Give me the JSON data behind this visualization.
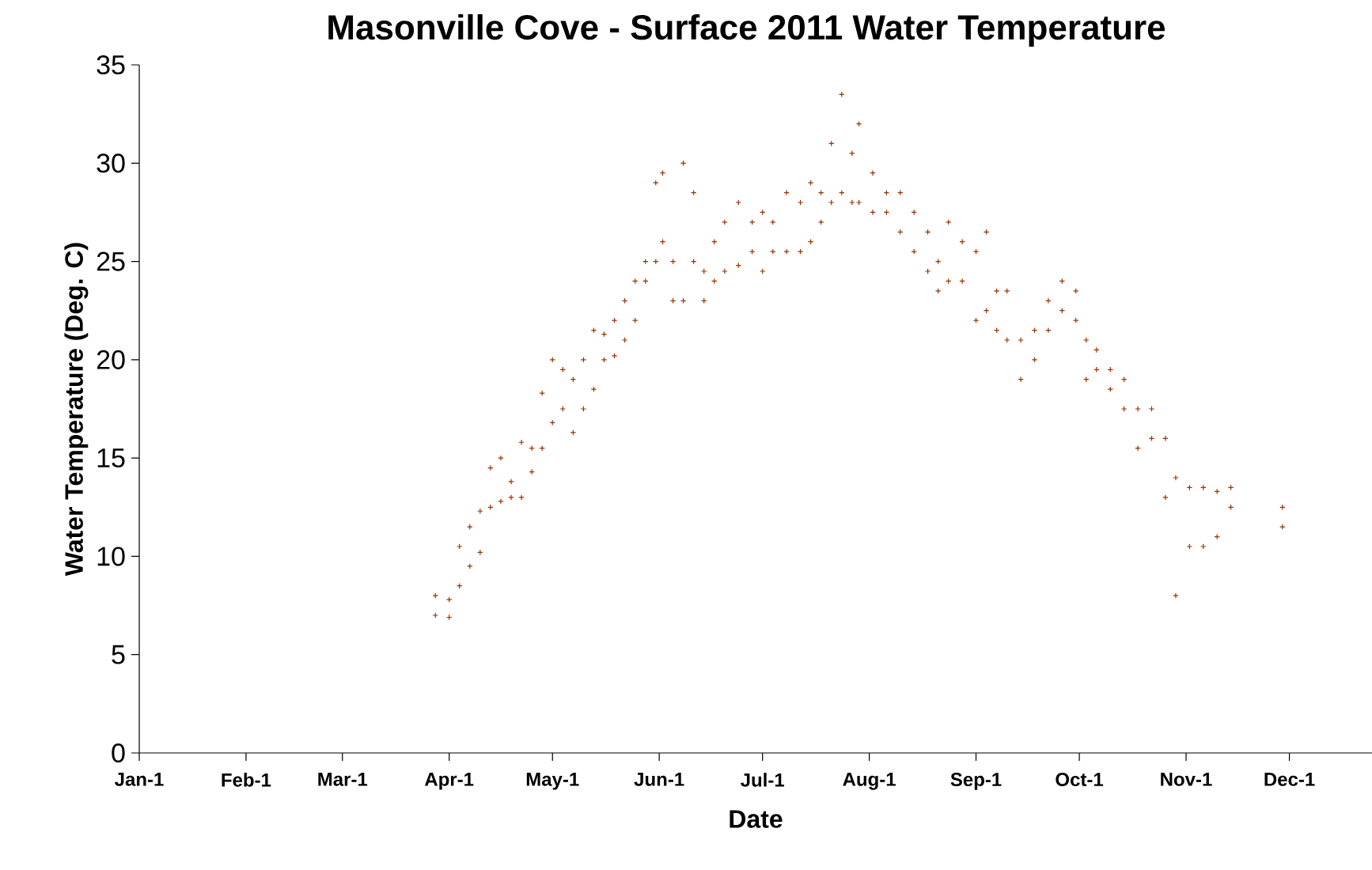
{
  "chart_data": {
    "type": "scatter",
    "title": "Masonville Cove - Surface 2011 Water Temperature",
    "xlabel": "Date",
    "ylabel": "Water Temperature (Deg. C)",
    "xlim": [
      "2011-01-01",
      "2011-12-25"
    ],
    "xticks": [
      {
        "value": "2011-01-01",
        "label": "Jan-1"
      },
      {
        "value": "2011-02-01",
        "label": "Feb-1"
      },
      {
        "value": "2011-03-01",
        "label": "Mar-1"
      },
      {
        "value": "2011-04-01",
        "label": "Apr-1"
      },
      {
        "value": "2011-05-01",
        "label": "May-1"
      },
      {
        "value": "2011-06-01",
        "label": "Jun-1"
      },
      {
        "value": "2011-07-01",
        "label": "Jul-1"
      },
      {
        "value": "2011-08-01",
        "label": "Aug-1"
      },
      {
        "value": "2011-09-01",
        "label": "Sep-1"
      },
      {
        "value": "2011-10-01",
        "label": "Oct-1"
      },
      {
        "value": "2011-11-01",
        "label": "Nov-1"
      },
      {
        "value": "2011-12-01",
        "label": "Dec-1"
      }
    ],
    "ylim": [
      0,
      35
    ],
    "yticks": [
      0,
      5,
      10,
      15,
      20,
      25,
      30,
      35
    ],
    "grid": false,
    "marker": "cross",
    "series": [
      {
        "color": "#993300",
        "x": [
          "2011-03-28",
          "2011-03-28",
          "2011-04-01",
          "2011-04-01",
          "2011-04-04",
          "2011-04-04",
          "2011-04-07",
          "2011-04-07",
          "2011-04-10",
          "2011-04-10",
          "2011-04-13",
          "2011-04-13",
          "2011-04-16",
          "2011-04-16",
          "2011-04-19",
          "2011-04-19",
          "2011-04-22",
          "2011-04-22",
          "2011-04-25",
          "2011-04-25",
          "2011-04-28",
          "2011-04-28",
          "2011-05-01",
          "2011-05-01",
          "2011-05-04",
          "2011-05-04",
          "2011-05-07",
          "2011-05-07",
          "2011-05-10",
          "2011-05-10",
          "2011-05-13",
          "2011-05-13",
          "2011-05-16",
          "2011-05-16",
          "2011-05-19",
          "2011-05-19",
          "2011-05-22",
          "2011-05-22",
          "2011-05-25",
          "2011-05-25",
          "2011-05-28",
          "2011-05-28",
          "2011-05-31",
          "2011-05-31",
          "2011-06-02",
          "2011-06-02",
          "2011-06-05",
          "2011-06-05",
          "2011-06-08",
          "2011-06-08",
          "2011-06-11",
          "2011-06-11",
          "2011-06-14",
          "2011-06-14",
          "2011-06-17",
          "2011-06-17",
          "2011-06-20",
          "2011-06-20",
          "2011-06-24",
          "2011-06-24",
          "2011-06-28",
          "2011-06-28",
          "2011-07-01",
          "2011-07-01",
          "2011-07-04",
          "2011-07-04",
          "2011-07-08",
          "2011-07-08",
          "2011-07-12",
          "2011-07-12",
          "2011-07-15",
          "2011-07-15",
          "2011-07-18",
          "2011-07-18",
          "2011-07-21",
          "2011-07-21",
          "2011-07-24",
          "2011-07-24",
          "2011-07-27",
          "2011-07-27",
          "2011-07-29",
          "2011-07-29",
          "2011-08-02",
          "2011-08-02",
          "2011-08-06",
          "2011-08-06",
          "2011-08-10",
          "2011-08-10",
          "2011-08-14",
          "2011-08-14",
          "2011-08-18",
          "2011-08-18",
          "2011-08-21",
          "2011-08-21",
          "2011-08-24",
          "2011-08-24",
          "2011-08-28",
          "2011-08-28",
          "2011-09-01",
          "2011-09-01",
          "2011-09-04",
          "2011-09-04",
          "2011-09-07",
          "2011-09-07",
          "2011-09-10",
          "2011-09-10",
          "2011-09-14",
          "2011-09-14",
          "2011-09-18",
          "2011-09-18",
          "2011-09-22",
          "2011-09-22",
          "2011-09-26",
          "2011-09-26",
          "2011-09-30",
          "2011-09-30",
          "2011-10-03",
          "2011-10-03",
          "2011-10-06",
          "2011-10-06",
          "2011-10-10",
          "2011-10-10",
          "2011-10-14",
          "2011-10-14",
          "2011-10-18",
          "2011-10-18",
          "2011-10-22",
          "2011-10-22",
          "2011-10-26",
          "2011-10-26",
          "2011-10-29",
          "2011-10-29",
          "2011-11-02",
          "2011-11-02",
          "2011-11-06",
          "2011-11-06",
          "2011-11-10",
          "2011-11-10",
          "2011-11-14",
          "2011-11-14",
          "2011-11-29",
          "2011-11-29"
        ],
        "values": [
          7.0,
          8.0,
          6.9,
          7.8,
          8.5,
          10.5,
          9.5,
          11.5,
          10.2,
          12.3,
          12.5,
          14.5,
          12.8,
          15.0,
          13.0,
          13.8,
          13.0,
          15.8,
          14.3,
          15.5,
          15.5,
          18.3,
          16.8,
          20.0,
          17.5,
          19.5,
          16.3,
          19.0,
          17.5,
          20.0,
          18.5,
          21.5,
          20.0,
          21.3,
          20.2,
          22.0,
          21.0,
          23.0,
          22.0,
          24.0,
          24.0,
          25.0,
          25.0,
          29.0,
          26.0,
          29.5,
          23.0,
          25.0,
          23.0,
          30.0,
          25.0,
          28.5,
          23.0,
          24.5,
          24.0,
          26.0,
          24.5,
          27.0,
          24.8,
          28.0,
          25.5,
          27.0,
          24.5,
          27.5,
          25.5,
          27.0,
          25.5,
          28.5,
          25.5,
          28.0,
          26.0,
          29.0,
          27.0,
          28.5,
          28.0,
          31.0,
          28.5,
          33.5,
          28.0,
          30.5,
          28.0,
          32.0,
          27.5,
          29.5,
          27.5,
          28.5,
          26.5,
          28.5,
          25.5,
          27.5,
          24.5,
          26.5,
          23.5,
          25.0,
          24.0,
          27.0,
          24.0,
          26.0,
          22.0,
          25.5,
          22.5,
          26.5,
          21.5,
          23.5,
          21.0,
          23.5,
          19.0,
          21.0,
          20.0,
          21.5,
          21.5,
          23.0,
          22.5,
          24.0,
          22.0,
          23.5,
          19.0,
          21.0,
          19.5,
          20.5,
          18.5,
          19.5,
          17.5,
          19.0,
          15.5,
          17.5,
          16.0,
          17.5,
          13.0,
          16.0,
          8.0,
          14.0,
          10.5,
          13.5,
          10.5,
          13.5,
          11.0,
          13.3,
          12.5,
          13.5,
          11.5,
          12.5
        ]
      }
    ]
  }
}
